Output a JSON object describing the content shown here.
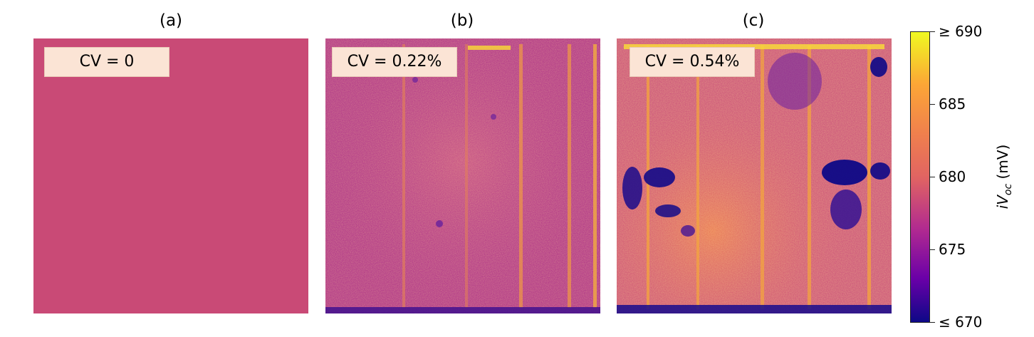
{
  "chart_data": {
    "type": "heatmap",
    "panels": [
      {
        "label": "(a)",
        "annotation": "CV = 0"
      },
      {
        "label": "(b)",
        "annotation": "CV = 0.22%"
      },
      {
        "label": "(c)",
        "annotation": "CV = 0.54%"
      }
    ],
    "colorbar": {
      "label": "iVoc (mV)",
      "label_parts": {
        "symbol": "iV",
        "subscript": "oc",
        "unit": " (mV)"
      },
      "range": [
        670,
        690
      ],
      "colormap": "plasma",
      "ticks": [
        {
          "value": 690,
          "label": "≥ 690"
        },
        {
          "value": 685,
          "label": "685"
        },
        {
          "value": 680,
          "label": "680"
        },
        {
          "value": 675,
          "label": "675"
        },
        {
          "value": 670,
          "label": "≤ 670"
        }
      ]
    },
    "colors": {
      "uniform_panel": "#c94a76",
      "annotation_box": "#fbe4d5"
    }
  }
}
